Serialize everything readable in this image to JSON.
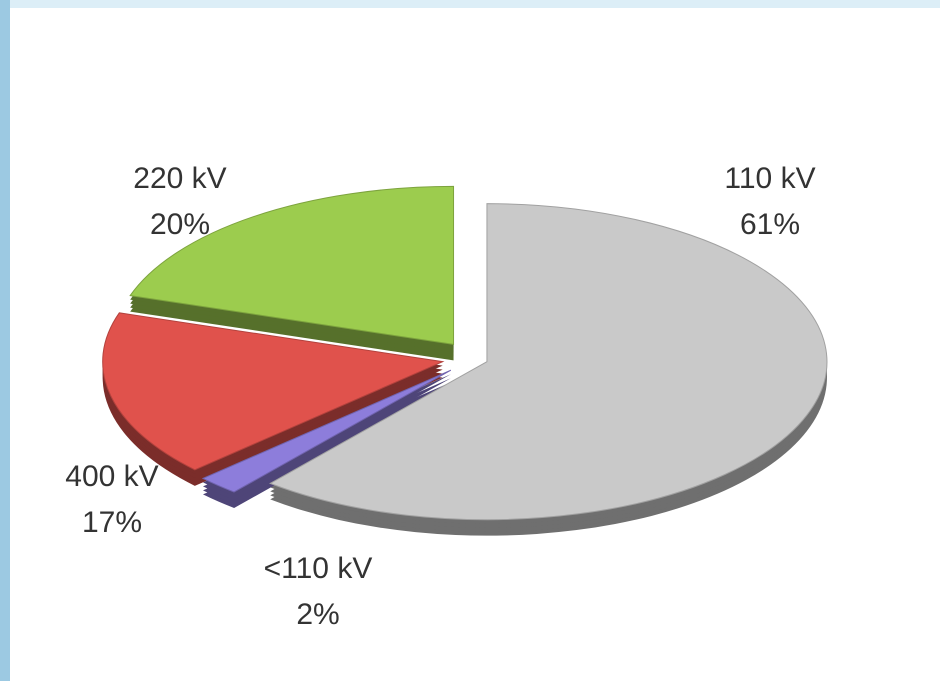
{
  "chart_data": {
    "type": "pie",
    "categories": [
      "110 kV",
      "<110 kV",
      "400 kV",
      "220 kV"
    ],
    "values": [
      61,
      2,
      17,
      20
    ],
    "value_labels": [
      "61%",
      "2%",
      "17%",
      "20%"
    ],
    "colors": [
      "#c9c9c9",
      "#8d7ddb",
      "#e0524c",
      "#9ccc4e"
    ]
  }
}
